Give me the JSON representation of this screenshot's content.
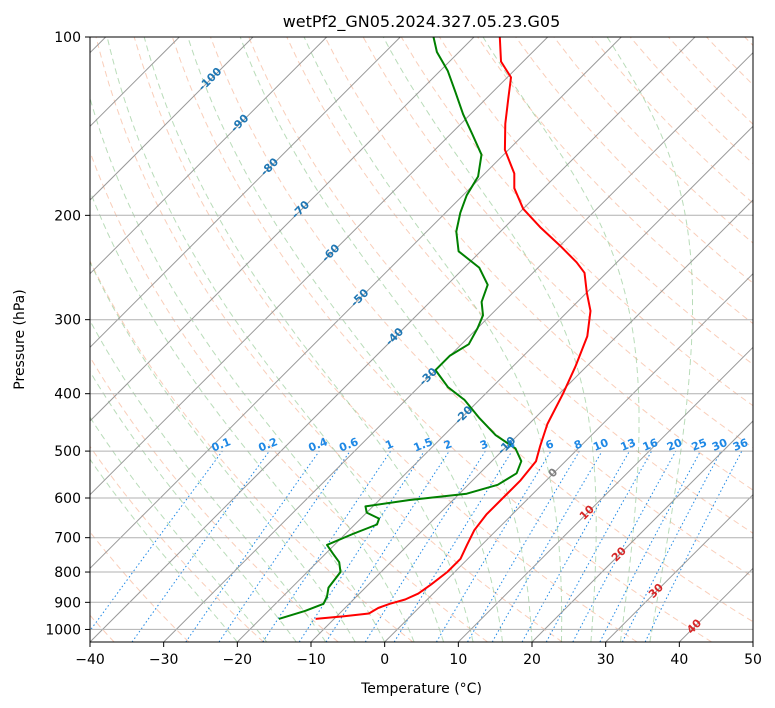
{
  "chart_data": {
    "type": "line",
    "title": "wetPf2_GN05.2024.327.05.23.G05",
    "xlabel": "Temperature (°C)",
    "ylabel": "Pressure (hPa)",
    "xlim": [
      -40,
      50
    ],
    "ylim": [
      1050,
      100
    ],
    "y_scale": "log",
    "grid": true,
    "x_ticks": [
      -40,
      -30,
      -20,
      -10,
      0,
      10,
      20,
      30,
      40,
      50
    ],
    "x_tick_labels": [
      "−40",
      "−30",
      "−20",
      "−10",
      "0",
      "10",
      "20",
      "30",
      "40",
      "50"
    ],
    "y_ticks": [
      1000,
      900,
      800,
      700,
      600,
      500,
      400,
      300,
      200,
      100
    ],
    "y_tick_labels": [
      "1000",
      "900",
      "800",
      "700",
      "600",
      "500",
      "400",
      "300",
      "200",
      "100"
    ],
    "isotherm_labels": [
      {
        "text": "-100",
        "t": -100,
        "p": 118
      },
      {
        "text": "-90",
        "t": -90,
        "p": 140
      },
      {
        "text": "-80",
        "t": -80,
        "p": 166
      },
      {
        "text": "-70",
        "t": -70,
        "p": 196
      },
      {
        "text": "-60",
        "t": -60,
        "p": 232
      },
      {
        "text": "-50",
        "t": -50,
        "p": 276
      },
      {
        "text": "-40",
        "t": -40,
        "p": 321
      },
      {
        "text": "-30",
        "t": -30,
        "p": 375
      },
      {
        "text": "-20",
        "t": -20,
        "p": 435
      },
      {
        "text": "-10",
        "t": -10,
        "p": 490
      },
      {
        "text": "0",
        "t": 0,
        "p": 545
      },
      {
        "text": "10",
        "t": 10,
        "p": 636
      },
      {
        "text": "20",
        "t": 20,
        "p": 748
      },
      {
        "text": "30",
        "t": 30,
        "p": 862
      },
      {
        "text": "40",
        "t": 40,
        "p": 990
      }
    ],
    "mixing_ratio_labels": [
      "0.1",
      "0.2",
      "0.4",
      "0.6",
      "1",
      "1.5",
      "2",
      "3",
      "4",
      "6",
      "8",
      "10",
      "13",
      "16",
      "20",
      "25",
      "30",
      "36"
    ],
    "mixing_ratio_values": [
      0.1,
      0.2,
      0.4,
      0.6,
      1,
      1.5,
      2,
      3,
      4,
      6,
      8,
      10,
      13,
      16,
      20,
      25,
      30,
      36
    ],
    "series": [
      {
        "color": "#ff0000",
        "kind": "temperature",
        "points": [
          [
            -12.5,
            960
          ],
          [
            -9,
            950
          ],
          [
            -6,
            940
          ],
          [
            -5.5,
            920
          ],
          [
            -4.5,
            905
          ],
          [
            -3,
            890
          ],
          [
            -2,
            870
          ],
          [
            -1.5,
            840
          ],
          [
            -1,
            800
          ],
          [
            -1,
            760
          ],
          [
            -2,
            720
          ],
          [
            -3,
            680
          ],
          [
            -3.5,
            640
          ],
          [
            -3.5,
            600
          ],
          [
            -3.5,
            560
          ],
          [
            -4,
            520
          ],
          [
            -5.5,
            490
          ],
          [
            -7.5,
            450
          ],
          [
            -9.5,
            400
          ],
          [
            -11.5,
            360
          ],
          [
            -14,
            320
          ],
          [
            -17,
            290
          ],
          [
            -20,
            270
          ],
          [
            -23,
            250
          ],
          [
            -25.5,
            240
          ],
          [
            -30,
            225
          ],
          [
            -35,
            210
          ],
          [
            -40,
            195
          ],
          [
            -44,
            180
          ],
          [
            -46,
            170
          ],
          [
            -50.5,
            155
          ],
          [
            -54,
            140
          ],
          [
            -57,
            127
          ],
          [
            -59.5,
            117
          ],
          [
            -63,
            110
          ],
          [
            -66.5,
            100
          ]
        ]
      },
      {
        "color": "#008000",
        "kind": "dewpoint",
        "points": [
          [
            -17.5,
            960
          ],
          [
            -15,
            930
          ],
          [
            -13.5,
            905
          ],
          [
            -14,
            880
          ],
          [
            -15,
            850
          ],
          [
            -15.5,
            800
          ],
          [
            -17,
            770
          ],
          [
            -19,
            745
          ],
          [
            -21,
            720
          ],
          [
            -19,
            690
          ],
          [
            -17,
            665
          ],
          [
            -17.5,
            650
          ],
          [
            -20,
            635
          ],
          [
            -21,
            620
          ],
          [
            -16,
            605
          ],
          [
            -9,
            590
          ],
          [
            -6,
            570
          ],
          [
            -5,
            545
          ],
          [
            -6,
            520
          ],
          [
            -8.5,
            495
          ],
          [
            -13,
            470
          ],
          [
            -17.5,
            440
          ],
          [
            -22,
            410
          ],
          [
            -26,
            390
          ],
          [
            -30,
            365
          ],
          [
            -30,
            345
          ],
          [
            -29,
            330
          ],
          [
            -30,
            310
          ],
          [
            -31,
            295
          ],
          [
            -33,
            280
          ],
          [
            -34.5,
            262
          ],
          [
            -38,
            245
          ],
          [
            -43,
            230
          ],
          [
            -46,
            213
          ],
          [
            -48,
            198
          ],
          [
            -49.5,
            185
          ],
          [
            -50.5,
            172
          ],
          [
            -53,
            158
          ],
          [
            -57,
            146
          ],
          [
            -61,
            135
          ],
          [
            -65,
            124
          ],
          [
            -69,
            114
          ],
          [
            -73,
            106
          ],
          [
            -75.5,
            100
          ]
        ]
      }
    ],
    "colors": {
      "temperature": "#ff0000",
      "dewpoint": "#008000",
      "isotherm": "#999999",
      "dry_adiabat": "#f4a582",
      "moist_adiabat": "#7fbf7f",
      "mixing_ratio": "#1e88e5",
      "neg_isotherm_label": "#1f77b4",
      "pos_isotherm_label": "#d62728",
      "zero_label": "#808080",
      "background_adiabat": "#d2b48c"
    }
  }
}
